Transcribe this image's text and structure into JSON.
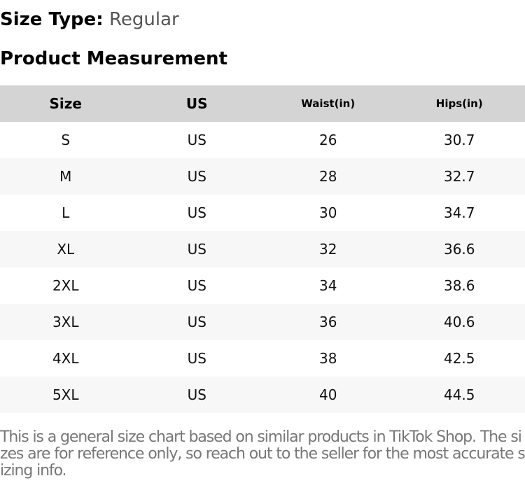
{
  "size_type": {
    "label": "Size Type:",
    "value": "Regular"
  },
  "title": "Product Measurement",
  "table": {
    "headers": [
      "Size",
      "US",
      "Waist(in)",
      "Hips(in)"
    ],
    "rows": [
      [
        "S",
        "US",
        "26",
        "30.7"
      ],
      [
        "M",
        "US",
        "28",
        "32.7"
      ],
      [
        "L",
        "US",
        "30",
        "34.7"
      ],
      [
        "XL",
        "US",
        "32",
        "36.6"
      ],
      [
        "2XL",
        "US",
        "34",
        "38.6"
      ],
      [
        "3XL",
        "US",
        "36",
        "40.6"
      ],
      [
        "4XL",
        "US",
        "38",
        "42.5"
      ],
      [
        "5XL",
        "US",
        "40",
        "44.5"
      ]
    ]
  },
  "note": "This is a general size chart based on similar products in TikTok Shop. The sizes are for reference only, so reach out to the seller for the most accurate sizing info."
}
